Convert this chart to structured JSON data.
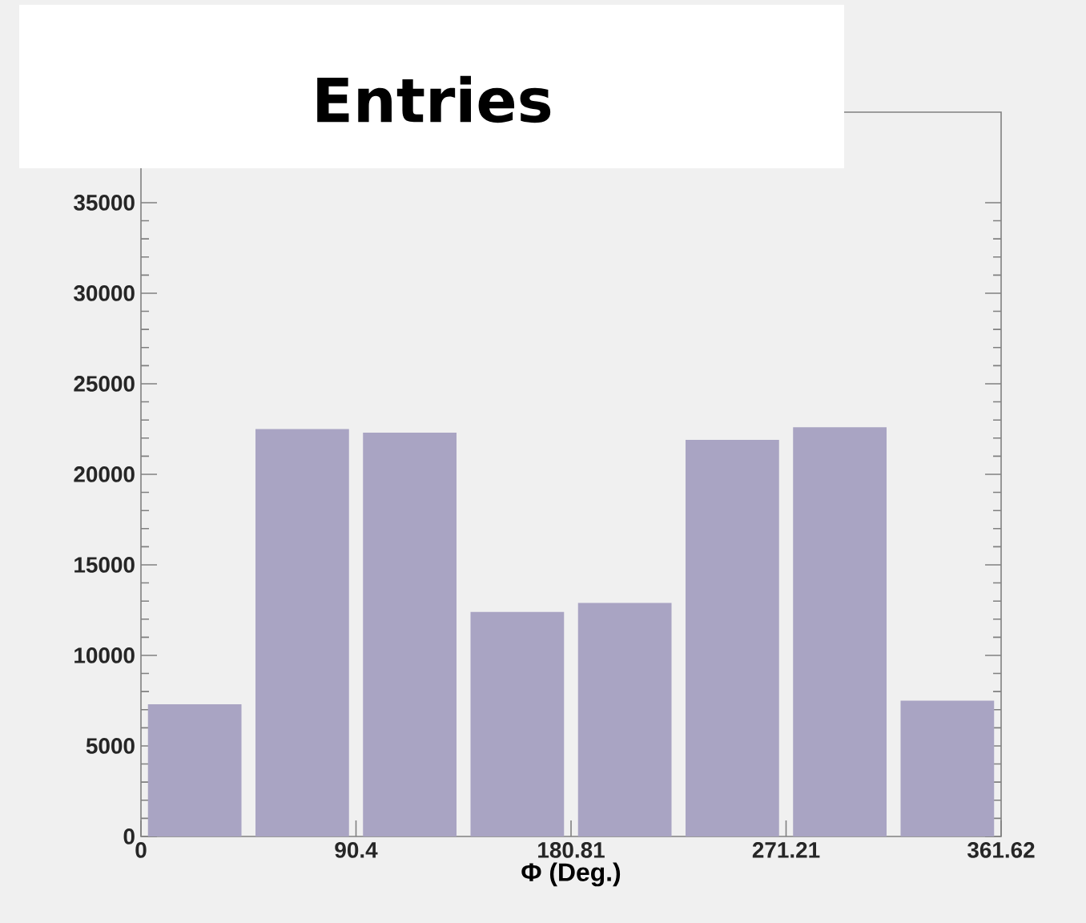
{
  "chart_data": {
    "type": "histogram",
    "title": "Entries",
    "xlabel": "Φ (Deg.)",
    "bins": [
      0,
      45.2,
      90.4,
      135.6,
      180.81,
      226.0,
      271.21,
      316.4,
      361.62
    ],
    "values": [
      7300,
      22500,
      22300,
      12400,
      12900,
      21900,
      22600,
      7500
    ],
    "color": "#a9a4c3",
    "xlim": [
      0,
      361.62
    ],
    "ylim": [
      0,
      40000
    ],
    "xticks": [
      0,
      90.4,
      180.81,
      271.21,
      361.62
    ],
    "yticks": [
      0,
      5000,
      10000,
      15000,
      20000,
      25000,
      30000,
      35000
    ]
  }
}
